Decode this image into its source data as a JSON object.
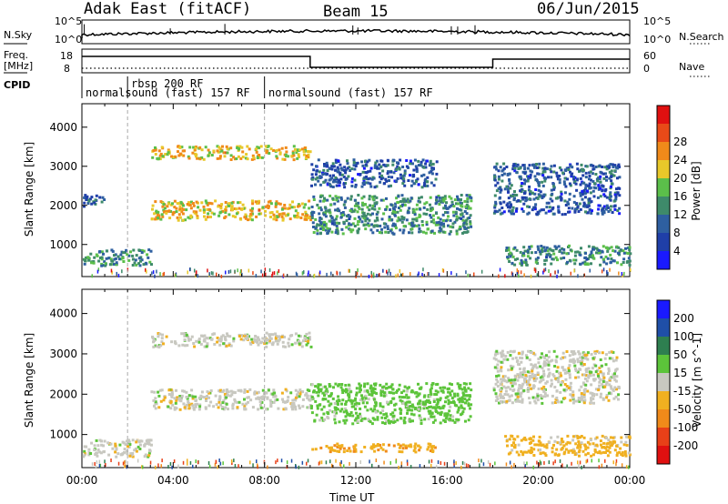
{
  "header": {
    "station": "Adak East (fitACF)",
    "beam": "Beam 15",
    "date": "06/Jun/2015"
  },
  "side_labels": {
    "nsky": "N.Sky",
    "nsearch": "N.Search",
    "freq": "Freq.",
    "mhz": "[MHz]",
    "nave": "Nave",
    "cpid": "CPID"
  },
  "noise_axis": {
    "left_top": "10^5",
    "left_bottom": "10^0",
    "right_top": "10^5",
    "right_bottom": "10^0"
  },
  "freq_axis": {
    "left_ticks": [
      "18",
      "8"
    ],
    "right_ticks": [
      "60",
      "0"
    ]
  },
  "cpid_segments": [
    {
      "label": "normalsound (fast) 157 RF"
    },
    {
      "label": "rbsp 200 RF"
    },
    {
      "label": "normalsound (fast) 157 RF"
    }
  ],
  "chart_data": [
    {
      "type": "heatmap",
      "name": "Power",
      "xlabel": "",
      "ylabel": "Slant Range [km]",
      "x_unit": "hours UT",
      "xlim": [
        0,
        24
      ],
      "ylim": [
        180,
        4600
      ],
      "y_ticks": [
        1000,
        2000,
        3000,
        4000
      ],
      "colorbar": {
        "label": "Power [dB]",
        "ticks": [
          4,
          8,
          12,
          16,
          20,
          24,
          28
        ],
        "range": [
          0,
          32
        ],
        "colors": [
          "#1a1aff",
          "#1f3fa8",
          "#2e5fa0",
          "#3e8a6a",
          "#5bbf4a",
          "#e8c82a",
          "#f08a1a",
          "#e84a18",
          "#e01010"
        ]
      },
      "bands": [
        {
          "t0": 3.0,
          "t1": 10.0,
          "r0": 3200,
          "r1": 3550,
          "level": 20
        },
        {
          "t0": 3.0,
          "t1": 10.0,
          "r0": 1650,
          "r1": 2150,
          "level": 20
        },
        {
          "t0": 0.0,
          "t1": 3.0,
          "r0": 480,
          "r1": 900,
          "level": 12
        },
        {
          "t0": 10.0,
          "t1": 17.0,
          "r0": 1300,
          "r1": 2300,
          "level": 12
        },
        {
          "t0": 10.0,
          "t1": 15.5,
          "r0": 2500,
          "r1": 3200,
          "level": 8
        },
        {
          "t0": 18.0,
          "t1": 23.5,
          "r0": 1800,
          "r1": 3100,
          "level": 8
        },
        {
          "t0": 18.5,
          "t1": 24.0,
          "r0": 500,
          "r1": 1000,
          "level": 12
        },
        {
          "t0": 0.0,
          "t1": 1.0,
          "r0": 2000,
          "r1": 2300,
          "level": 8
        }
      ]
    },
    {
      "type": "heatmap",
      "name": "Velocity",
      "xlabel": "Time UT",
      "ylabel": "Slant Range [km]",
      "x_unit": "hours UT",
      "xlim": [
        0,
        24
      ],
      "ylim": [
        180,
        4600
      ],
      "x_ticks": [
        "00:00",
        "04:00",
        "08:00",
        "12:00",
        "16:00",
        "20:00",
        "00:00"
      ],
      "y_ticks": [
        1000,
        2000,
        3000,
        4000
      ],
      "colorbar": {
        "label": "Velocity [m s^-1]",
        "ticks": [
          200,
          100,
          50,
          15,
          -15,
          -50,
          -100,
          -200
        ],
        "colors": [
          "#1a1aff",
          "#1f4fa8",
          "#2e7f50",
          "#5cc43a",
          "#c8c8c0",
          "#f0b020",
          "#f08a1a",
          "#e84018",
          "#e01010"
        ]
      },
      "bands": [
        {
          "t0": 3.0,
          "t1": 10.0,
          "r0": 3200,
          "r1": 3550,
          "level": 0
        },
        {
          "t0": 3.0,
          "t1": 10.0,
          "r0": 1650,
          "r1": 2150,
          "level": 0
        },
        {
          "t0": 0.0,
          "t1": 3.0,
          "r0": 480,
          "r1": 900,
          "level": 0
        },
        {
          "t0": 10.0,
          "t1": 17.0,
          "r0": 1300,
          "r1": 2300,
          "level": 30
        },
        {
          "t0": 10.0,
          "t1": 15.5,
          "r0": 600,
          "r1": 800,
          "level": -40
        },
        {
          "t0": 18.0,
          "t1": 23.5,
          "r0": 1800,
          "r1": 3100,
          "level": 0
        },
        {
          "t0": 18.5,
          "t1": 24.0,
          "r0": 500,
          "r1": 1000,
          "level": -30
        }
      ]
    }
  ]
}
